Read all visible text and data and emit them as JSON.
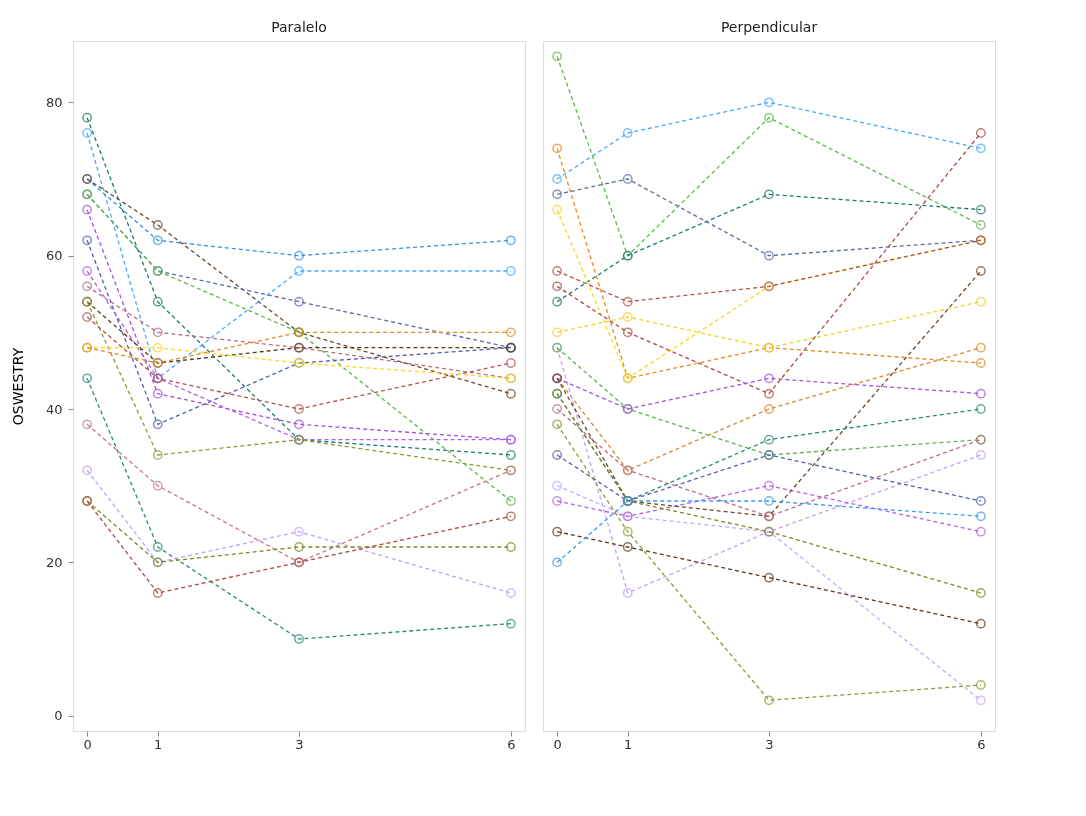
{
  "chart_data": [
    {
      "type": "line",
      "title": "Paralelo",
      "ylabel": "OSWESTRY",
      "x": [
        0,
        1,
        3,
        6
      ],
      "xlim": [
        -0.2,
        6.2
      ],
      "xticks": [
        0,
        1,
        3,
        6
      ],
      "ylim": [
        -2,
        88
      ],
      "yticks": [
        0,
        20,
        40,
        60,
        80
      ],
      "grid": false,
      "marker": "circle",
      "line_style": "dashed",
      "series": [
        {
          "color": "#1a7a6a",
          "values": [
            78,
            54,
            36,
            34
          ]
        },
        {
          "color": "#44aaff",
          "values": [
            76,
            44,
            58,
            58
          ]
        },
        {
          "color": "#3a8fe0",
          "values": [
            70,
            62,
            60,
            62
          ]
        },
        {
          "color": "#6b4a2a",
          "values": [
            70,
            64,
            50,
            42
          ]
        },
        {
          "color": "#5b6ba0",
          "values": [
            68,
            58,
            54,
            48
          ]
        },
        {
          "color": "#5cb84a",
          "values": [
            68,
            58,
            50,
            28
          ]
        },
        {
          "color": "#a050e0",
          "values": [
            66,
            42,
            38,
            36
          ]
        },
        {
          "color": "#4f5fa8",
          "values": [
            62,
            38,
            46,
            48
          ]
        },
        {
          "color": "#b060e8",
          "values": [
            58,
            44,
            36,
            36
          ]
        },
        {
          "color": "#b87080",
          "values": [
            56,
            50,
            48,
            44
          ]
        },
        {
          "color": "#5a3a1a",
          "values": [
            54,
            46,
            48,
            48
          ]
        },
        {
          "color": "#8a9a30",
          "values": [
            54,
            34,
            36,
            32
          ]
        },
        {
          "color": "#b0524a",
          "values": [
            52,
            44,
            40,
            46
          ]
        },
        {
          "color": "#f8d820",
          "values": [
            48,
            48,
            46,
            44
          ]
        },
        {
          "color": "#e08a20",
          "values": [
            48,
            46,
            50,
            50
          ]
        },
        {
          "color": "#2a8a7a",
          "values": [
            44,
            22,
            10,
            12
          ]
        },
        {
          "color": "#c07888",
          "values": [
            38,
            30,
            20,
            32
          ]
        },
        {
          "color": "#c0a0f8",
          "values": [
            32,
            20,
            24,
            16
          ]
        },
        {
          "color": "#7a8a20",
          "values": [
            28,
            20,
            22,
            22
          ]
        },
        {
          "color": "#a84a40",
          "values": [
            28,
            16,
            20,
            26
          ]
        }
      ]
    },
    {
      "type": "line",
      "title": "Perpendicular",
      "x": [
        0,
        1,
        3,
        6
      ],
      "xlim": [
        -0.2,
        6.2
      ],
      "xticks": [
        0,
        1,
        3,
        6
      ],
      "ylim": [
        -2,
        88
      ],
      "yticks": [
        0,
        20,
        40,
        60,
        80
      ],
      "tick_labels": "x",
      "grid": false,
      "marker": "circle",
      "line_style": "dashed",
      "series": [
        {
          "color": "#44aaff",
          "values": [
            70,
            76,
            80,
            74
          ]
        },
        {
          "color": "#5cb84a",
          "values": [
            86,
            60,
            78,
            64
          ]
        },
        {
          "color": "#5b6ba0",
          "values": [
            68,
            70,
            60,
            62
          ]
        },
        {
          "color": "#1a7a6a",
          "values": [
            54,
            60,
            68,
            66
          ]
        },
        {
          "color": "#e08a20",
          "values": [
            74,
            44,
            48,
            46
          ]
        },
        {
          "color": "#d8882a",
          "values": [
            44,
            32,
            40,
            48
          ]
        },
        {
          "color": "#f8d820",
          "values": [
            66,
            44,
            56,
            62
          ]
        },
        {
          "color": "#f0d030",
          "values": [
            50,
            52,
            48,
            54
          ]
        },
        {
          "color": "#b0524a",
          "values": [
            58,
            54,
            56,
            62
          ]
        },
        {
          "color": "#a84a40",
          "values": [
            56,
            50,
            42,
            76
          ]
        },
        {
          "color": "#c0a0f8",
          "values": [
            48,
            16,
            24,
            34
          ]
        },
        {
          "color": "#c8a8ff",
          "values": [
            30,
            26,
            24,
            2
          ]
        },
        {
          "color": "#60b050",
          "values": [
            48,
            40,
            34,
            36
          ]
        },
        {
          "color": "#a050e0",
          "values": [
            44,
            40,
            44,
            42
          ]
        },
        {
          "color": "#b060e8",
          "values": [
            28,
            26,
            30,
            24
          ]
        },
        {
          "color": "#6b4a2a",
          "values": [
            44,
            28,
            26,
            58
          ]
        },
        {
          "color": "#5a3a1a",
          "values": [
            24,
            22,
            18,
            12
          ]
        },
        {
          "color": "#2a8a7a",
          "values": [
            42,
            28,
            36,
            40
          ]
        },
        {
          "color": "#4f5fa8",
          "values": [
            34,
            28,
            34,
            28
          ]
        },
        {
          "color": "#b87080",
          "values": [
            40,
            32,
            26,
            36
          ]
        },
        {
          "color": "#8a9a30",
          "values": [
            38,
            24,
            2,
            4
          ]
        },
        {
          "color": "#7a8a20",
          "values": [
            42,
            28,
            24,
            16
          ]
        },
        {
          "color": "#3a9af0",
          "values": [
            20,
            28,
            28,
            26
          ]
        }
      ]
    }
  ]
}
